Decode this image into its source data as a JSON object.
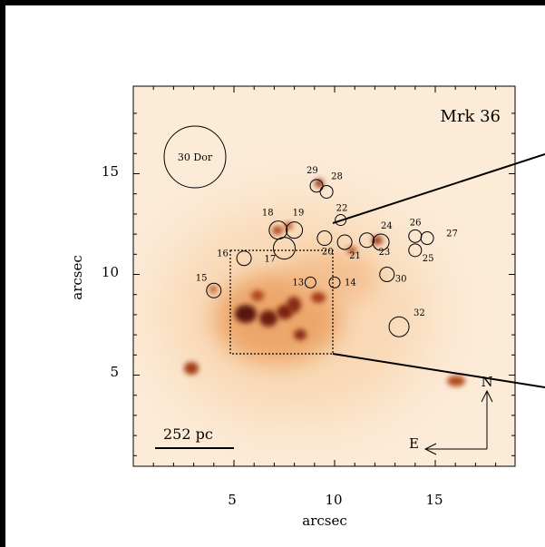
{
  "title": "Mrk 36",
  "reference_circle_label": "30 Dor",
  "scale_bar_label": "252 pc",
  "compass": {
    "north": "N",
    "east": "E"
  },
  "x_axis": {
    "label": "arcsec",
    "ticks": [
      "5",
      "10",
      "15"
    ]
  },
  "y_axis": {
    "label": "arcsec",
    "ticks": [
      "5",
      "10",
      "15"
    ]
  },
  "sources": [
    {
      "id": "13",
      "x": 8.8,
      "y": 9.6
    },
    {
      "id": "14",
      "x": 10.0,
      "y": 9.6
    },
    {
      "id": "15",
      "x": 4.0,
      "y": 9.2
    },
    {
      "id": "16",
      "x": 5.5,
      "y": 10.8
    },
    {
      "id": "17",
      "x": 7.5,
      "y": 11.3
    },
    {
      "id": "18",
      "x": 7.2,
      "y": 12.2
    },
    {
      "id": "19",
      "x": 8.0,
      "y": 12.2
    },
    {
      "id": "20",
      "x": 9.5,
      "y": 11.8
    },
    {
      "id": "21",
      "x": 10.5,
      "y": 11.6
    },
    {
      "id": "22",
      "x": 10.3,
      "y": 12.7
    },
    {
      "id": "23",
      "x": 11.6,
      "y": 11.7
    },
    {
      "id": "24",
      "x": 12.3,
      "y": 11.6
    },
    {
      "id": "25",
      "x": 14.0,
      "y": 11.2
    },
    {
      "id": "26",
      "x": 14.0,
      "y": 11.9
    },
    {
      "id": "27",
      "x": 14.6,
      "y": 11.8
    },
    {
      "id": "28",
      "x": 9.6,
      "y": 14.1
    },
    {
      "id": "29",
      "x": 9.1,
      "y": 14.4
    },
    {
      "id": "30",
      "x": 12.6,
      "y": 10.0
    },
    {
      "id": "32",
      "x": 13.2,
      "y": 7.4
    }
  ]
}
